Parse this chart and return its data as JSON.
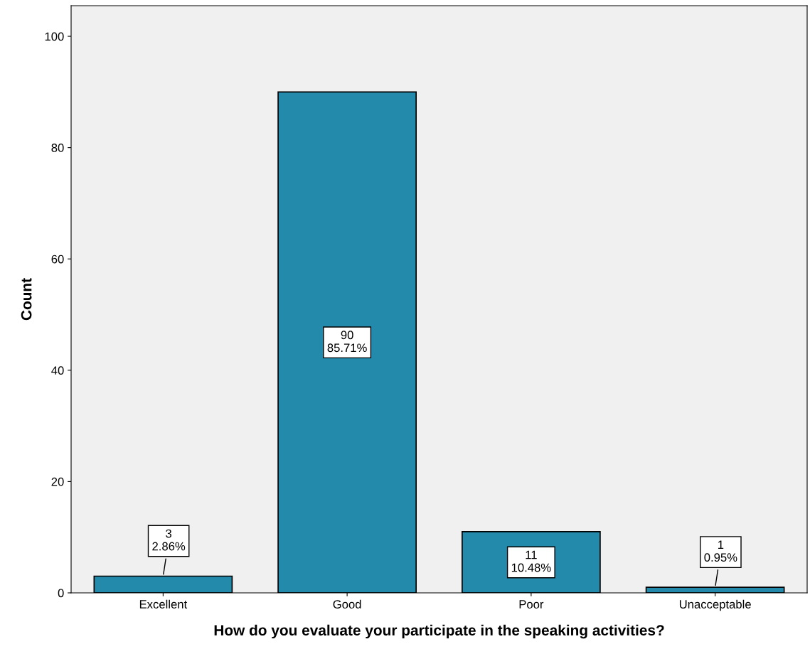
{
  "chart_data": {
    "type": "bar",
    "xlabel": "How do you evaluate your participate in the speaking activities?",
    "ylabel": "Count",
    "categories": [
      "Excellent",
      "Good",
      "Poor",
      "Unacceptable"
    ],
    "values": [
      3,
      90,
      11,
      1
    ],
    "value_labels": [
      "3\n2.86%",
      "90\n85.71%",
      "11\n10.48%",
      "1\n0.95%"
    ],
    "color": "#248aab",
    "ylim": [
      0,
      105.5
    ],
    "yticks": [
      0,
      20,
      40,
      60,
      80,
      100
    ],
    "grid": false
  }
}
